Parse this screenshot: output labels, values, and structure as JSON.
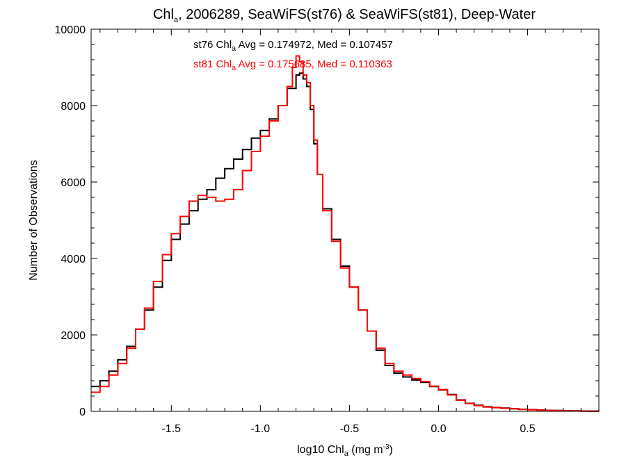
{
  "chart_data": {
    "type": "line",
    "style": "step-histogram",
    "title": {
      "pre": "Chl",
      "sub": "a",
      "post": ", 2006289, SeaWiFS(st76) & SeaWiFS(st81), Deep-Water"
    },
    "xlabel": {
      "pre": "log10 Chl",
      "sub": "a",
      "mid": " (mg m",
      "sup": "-3",
      "post": ")"
    },
    "ylabel": "Number of Observations",
    "xlim": [
      -1.95,
      0.9
    ],
    "ylim": [
      0,
      10000
    ],
    "x_ticks": [
      -1.5,
      -1.0,
      -0.5,
      0.0,
      0.5
    ],
    "x_tick_labels": [
      "-1.5",
      "-1.0",
      "-0.5",
      "0.0",
      "0.5"
    ],
    "y_ticks": [
      0,
      2000,
      4000,
      6000,
      8000,
      10000
    ],
    "y_tick_labels": [
      "0",
      "2000",
      "4000",
      "6000",
      "8000",
      "10000"
    ],
    "grid": false,
    "annotations": [
      {
        "pre": "st76 Chl",
        "sub": "a",
        "post": " Avg = 0.174972, Med = 0.107457",
        "color": "#000000"
      },
      {
        "pre": "st81 Chl",
        "sub": "a",
        "post": " Avg = 0.175685, Med = 0.110363",
        "color": "#ff0000"
      }
    ],
    "series": [
      {
        "color": "#000000",
        "points": [
          [
            -1.95,
            650
          ],
          [
            -1.9,
            800
          ],
          [
            -1.85,
            1050
          ],
          [
            -1.8,
            1350
          ],
          [
            -1.75,
            1700
          ],
          [
            -1.7,
            2150
          ],
          [
            -1.65,
            2650
          ],
          [
            -1.6,
            3250
          ],
          [
            -1.55,
            3950
          ],
          [
            -1.5,
            4500
          ],
          [
            -1.45,
            4900
          ],
          [
            -1.4,
            5250
          ],
          [
            -1.35,
            5550
          ],
          [
            -1.3,
            5800
          ],
          [
            -1.25,
            6100
          ],
          [
            -1.2,
            6350
          ],
          [
            -1.15,
            6600
          ],
          [
            -1.1,
            6850
          ],
          [
            -1.05,
            7150
          ],
          [
            -1.0,
            7350
          ],
          [
            -0.95,
            7650
          ],
          [
            -0.9,
            8000
          ],
          [
            -0.85,
            8450
          ],
          [
            -0.8,
            8800
          ],
          [
            -0.78,
            8850
          ],
          [
            -0.76,
            8700
          ],
          [
            -0.74,
            8500
          ],
          [
            -0.72,
            7900
          ],
          [
            -0.7,
            7000
          ],
          [
            -0.68,
            6200
          ],
          [
            -0.65,
            5300
          ],
          [
            -0.6,
            4500
          ],
          [
            -0.55,
            3800
          ],
          [
            -0.5,
            3250
          ],
          [
            -0.45,
            2650
          ],
          [
            -0.4,
            2100
          ],
          [
            -0.35,
            1600
          ],
          [
            -0.3,
            1200
          ],
          [
            -0.25,
            1000
          ],
          [
            -0.2,
            900
          ],
          [
            -0.15,
            820
          ],
          [
            -0.1,
            760
          ],
          [
            -0.05,
            650
          ],
          [
            0.0,
            560
          ],
          [
            0.05,
            440
          ],
          [
            0.1,
            300
          ],
          [
            0.15,
            210
          ],
          [
            0.2,
            160
          ],
          [
            0.25,
            120
          ],
          [
            0.3,
            100
          ],
          [
            0.35,
            85
          ],
          [
            0.4,
            70
          ],
          [
            0.45,
            55
          ],
          [
            0.5,
            45
          ],
          [
            0.55,
            35
          ],
          [
            0.6,
            28
          ],
          [
            0.65,
            22
          ],
          [
            0.7,
            17
          ],
          [
            0.75,
            12
          ],
          [
            0.8,
            8
          ],
          [
            0.85,
            5
          ],
          [
            0.9,
            3
          ]
        ]
      },
      {
        "color": "#ff0000",
        "points": [
          [
            -1.95,
            500
          ],
          [
            -1.9,
            650
          ],
          [
            -1.85,
            950
          ],
          [
            -1.8,
            1250
          ],
          [
            -1.75,
            1650
          ],
          [
            -1.7,
            2150
          ],
          [
            -1.65,
            2700
          ],
          [
            -1.6,
            3400
          ],
          [
            -1.55,
            4100
          ],
          [
            -1.5,
            4650
          ],
          [
            -1.45,
            5100
          ],
          [
            -1.4,
            5500
          ],
          [
            -1.35,
            5650
          ],
          [
            -1.3,
            5600
          ],
          [
            -1.25,
            5500
          ],
          [
            -1.2,
            5550
          ],
          [
            -1.15,
            5800
          ],
          [
            -1.1,
            6300
          ],
          [
            -1.05,
            6800
          ],
          [
            -1.0,
            7200
          ],
          [
            -0.95,
            7600
          ],
          [
            -0.9,
            8000
          ],
          [
            -0.85,
            8500
          ],
          [
            -0.82,
            9000
          ],
          [
            -0.8,
            9300
          ],
          [
            -0.78,
            9150
          ],
          [
            -0.76,
            8800
          ],
          [
            -0.74,
            8600
          ],
          [
            -0.72,
            8000
          ],
          [
            -0.7,
            7100
          ],
          [
            -0.68,
            6200
          ],
          [
            -0.65,
            5250
          ],
          [
            -0.6,
            4450
          ],
          [
            -0.55,
            3750
          ],
          [
            -0.5,
            3250
          ],
          [
            -0.45,
            2650
          ],
          [
            -0.4,
            2100
          ],
          [
            -0.35,
            1650
          ],
          [
            -0.3,
            1250
          ],
          [
            -0.25,
            1050
          ],
          [
            -0.2,
            950
          ],
          [
            -0.15,
            860
          ],
          [
            -0.1,
            780
          ],
          [
            -0.05,
            660
          ],
          [
            0.0,
            570
          ],
          [
            0.05,
            430
          ],
          [
            0.1,
            290
          ],
          [
            0.15,
            205
          ],
          [
            0.2,
            150
          ],
          [
            0.25,
            115
          ],
          [
            0.3,
            95
          ],
          [
            0.35,
            80
          ],
          [
            0.4,
            65
          ],
          [
            0.45,
            50
          ],
          [
            0.5,
            40
          ],
          [
            0.55,
            32
          ],
          [
            0.6,
            25
          ],
          [
            0.65,
            20
          ],
          [
            0.7,
            15
          ],
          [
            0.75,
            10
          ],
          [
            0.8,
            7
          ],
          [
            0.85,
            4
          ],
          [
            0.9,
            2
          ]
        ]
      }
    ]
  }
}
